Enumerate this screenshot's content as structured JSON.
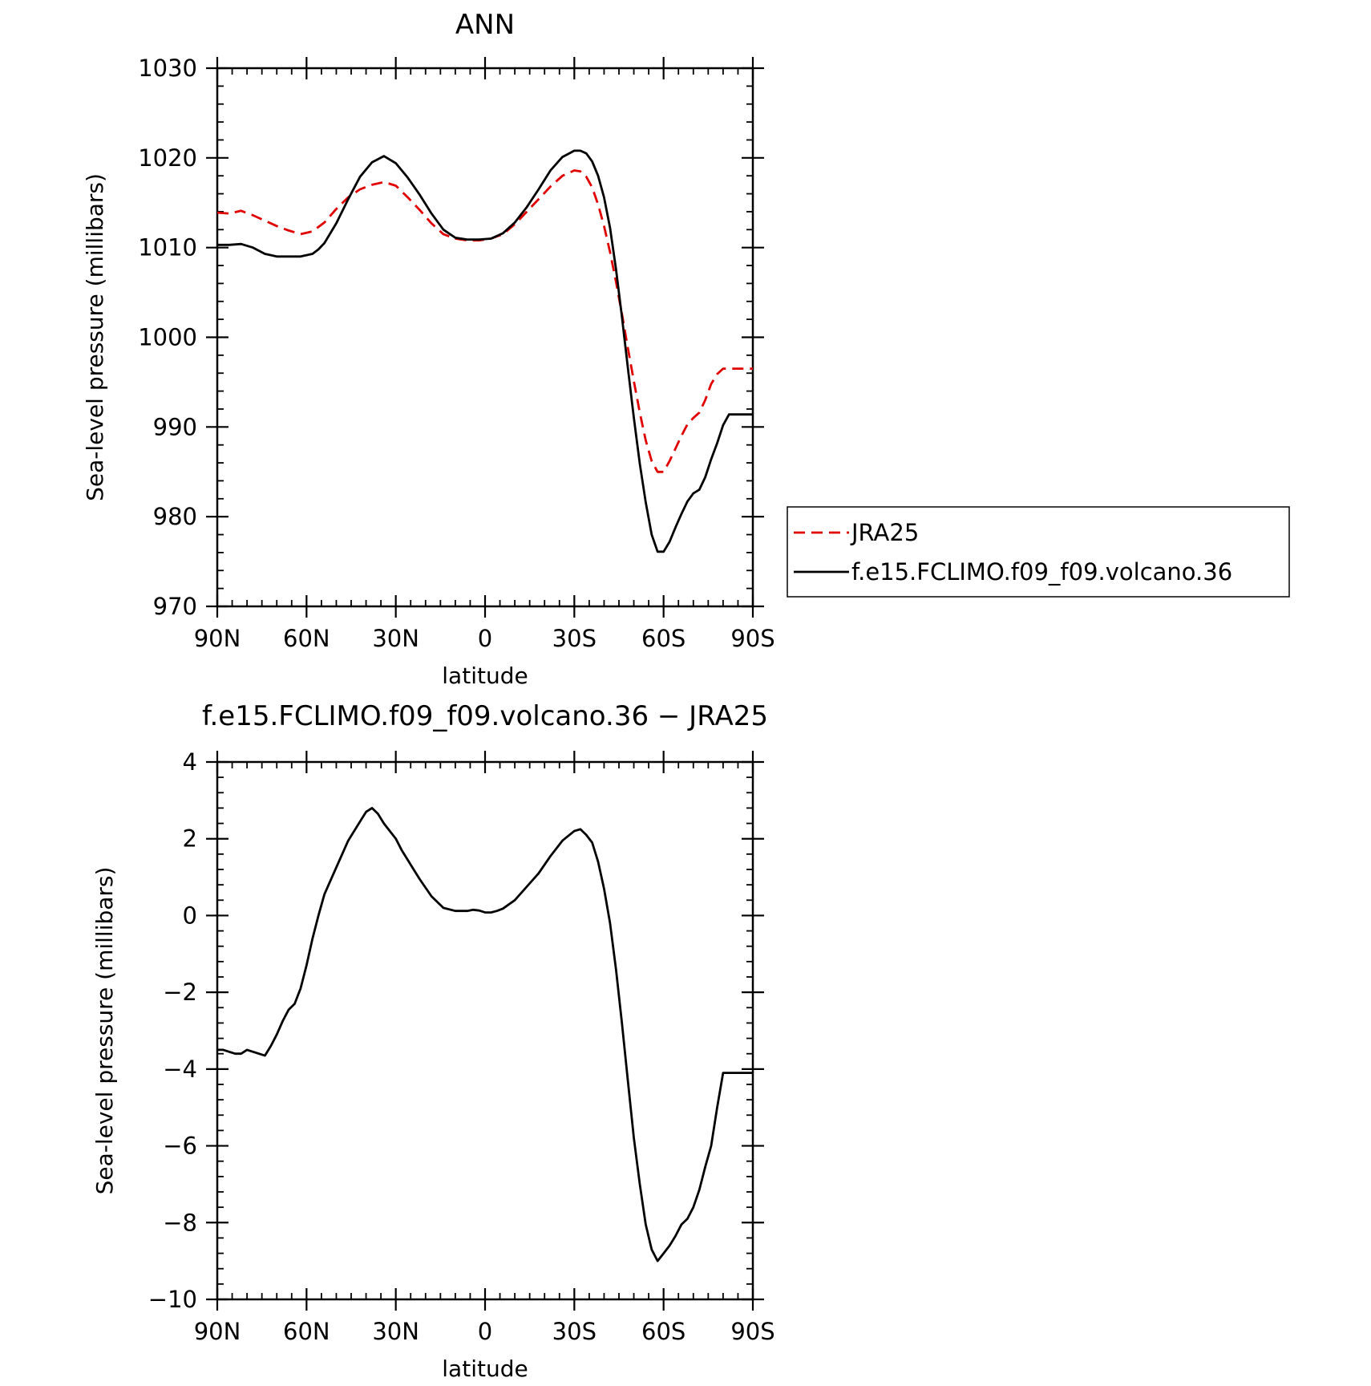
{
  "chart_data": [
    {
      "type": "line",
      "title": "ANN",
      "xlabel": "latitude",
      "ylabel": "Sea-level pressure (millibars)",
      "xlim": [
        90,
        -90
      ],
      "ylim": [
        970,
        1030
      ],
      "x_ticks": [
        {
          "value": 90,
          "label": "90N"
        },
        {
          "value": 60,
          "label": "60N"
        },
        {
          "value": 30,
          "label": "30N"
        },
        {
          "value": 0,
          "label": "0"
        },
        {
          "value": -30,
          "label": "30S"
        },
        {
          "value": -60,
          "label": "60S"
        },
        {
          "value": -90,
          "label": "90S"
        }
      ],
      "y_ticks": [
        {
          "value": 1030,
          "label": "1030"
        },
        {
          "value": 1020,
          "label": "1020"
        },
        {
          "value": 1010,
          "label": "1010"
        },
        {
          "value": 1000,
          "label": "1000"
        },
        {
          "value": 990,
          "label": "990"
        },
        {
          "value": 980,
          "label": "980"
        },
        {
          "value": 970,
          "label": "970"
        }
      ],
      "legend": {
        "position": "right"
      },
      "series": [
        {
          "name": "JRA25",
          "color": "#e00000",
          "dash": true,
          "x": [
            90,
            86,
            82,
            78,
            74,
            70,
            66,
            62,
            58,
            54,
            50,
            46,
            42,
            38,
            34,
            30,
            26,
            22,
            18,
            14,
            10,
            6,
            2,
            -2,
            -6,
            -10,
            -14,
            -18,
            -22,
            -26,
            -30,
            -32,
            -34,
            -36,
            -38,
            -40,
            -42,
            -44,
            -46,
            -48,
            -50,
            -52,
            -54,
            -56,
            -58,
            -60,
            -62,
            -64,
            -66,
            -68,
            -70,
            -72,
            -74,
            -76,
            -78,
            -80,
            -82,
            -84,
            -86,
            -88,
            -90
          ],
          "y": [
            1013.9,
            1013.8,
            1014.1,
            1013.6,
            1013.0,
            1012.4,
            1011.9,
            1011.5,
            1011.8,
            1012.8,
            1014.3,
            1015.6,
            1016.5,
            1017.0,
            1017.3,
            1016.9,
            1015.6,
            1014.2,
            1012.7,
            1011.5,
            1011.0,
            1010.8,
            1010.8,
            1011.0,
            1011.5,
            1012.6,
            1014.0,
            1015.4,
            1016.8,
            1018.0,
            1018.6,
            1018.5,
            1017.9,
            1016.7,
            1014.8,
            1012.4,
            1009.5,
            1006.2,
            1002.6,
            998.8,
            995.1,
            991.6,
            988.5,
            986.2,
            985.0,
            985.0,
            986.2,
            987.6,
            989.0,
            990.3,
            991.0,
            991.6,
            993.0,
            994.8,
            995.9,
            996.5,
            996.5,
            996.5,
            996.5,
            996.5,
            996.5
          ]
        },
        {
          "name": "f.e15.FCLIMO.f09_f09.volcano.36",
          "color": "#000000",
          "dash": false,
          "x": [
            90,
            86,
            82,
            78,
            74,
            70,
            66,
            62,
            58,
            56,
            54,
            50,
            46,
            42,
            38,
            34,
            30,
            26,
            22,
            18,
            14,
            10,
            6,
            2,
            -2,
            -6,
            -10,
            -14,
            -18,
            -22,
            -26,
            -30,
            -32,
            -34,
            -36,
            -38,
            -40,
            -42,
            -44,
            -46,
            -48,
            -50,
            -52,
            -54,
            -56,
            -58,
            -60,
            -62,
            -64,
            -66,
            -68,
            -70,
            -72,
            -74,
            -76,
            -78,
            -80,
            -82,
            -84,
            -86,
            -88,
            -90
          ],
          "y": [
            1010.3,
            1010.3,
            1010.4,
            1010.0,
            1009.3,
            1009.0,
            1009.0,
            1009.0,
            1009.3,
            1009.8,
            1010.5,
            1012.7,
            1015.4,
            1017.9,
            1019.5,
            1020.2,
            1019.4,
            1017.8,
            1015.9,
            1013.8,
            1012.0,
            1011.1,
            1010.9,
            1010.9,
            1011.0,
            1011.6,
            1012.8,
            1014.5,
            1016.5,
            1018.6,
            1020.1,
            1020.8,
            1020.8,
            1020.5,
            1019.6,
            1018.0,
            1015.6,
            1012.2,
            1007.6,
            1002.3,
            996.6,
            991.0,
            985.9,
            981.6,
            978.0,
            976.1,
            976.1,
            977.2,
            978.8,
            980.3,
            981.7,
            982.6,
            983.0,
            984.4,
            986.4,
            988.2,
            990.2,
            991.4,
            991.4,
            991.4,
            991.4,
            991.4
          ]
        }
      ]
    },
    {
      "type": "line",
      "title": "f.e15.FCLIMO.f09_f09.volcano.36 − JRA25",
      "xlabel": "latitude",
      "ylabel": "Sea-level pressure (millibars)",
      "xlim": [
        90,
        -90
      ],
      "ylim": [
        -10,
        4
      ],
      "x_ticks": [
        {
          "value": 90,
          "label": "90N"
        },
        {
          "value": 60,
          "label": "60N"
        },
        {
          "value": 30,
          "label": "30N"
        },
        {
          "value": 0,
          "label": "0"
        },
        {
          "value": -30,
          "label": "30S"
        },
        {
          "value": -60,
          "label": "60S"
        },
        {
          "value": -90,
          "label": "90S"
        }
      ],
      "y_ticks": [
        {
          "value": 4,
          "label": "4"
        },
        {
          "value": 2,
          "label": "2"
        },
        {
          "value": 0,
          "label": "0"
        },
        {
          "value": -2,
          "label": "−2"
        },
        {
          "value": -4,
          "label": "−4"
        },
        {
          "value": -6,
          "label": "−6"
        },
        {
          "value": -8,
          "label": "−8"
        },
        {
          "value": -10,
          "label": "−10"
        }
      ],
      "series": [
        {
          "color": "#000000",
          "dash": false,
          "x": [
            90,
            88,
            86,
            84,
            82,
            80,
            78,
            76,
            74,
            72,
            70,
            68,
            66,
            64,
            62,
            60,
            58,
            56,
            54,
            50,
            46,
            42,
            40,
            38,
            36,
            34,
            32,
            30,
            28,
            26,
            24,
            22,
            18,
            14,
            10,
            6,
            4,
            2,
            0,
            -2,
            -4,
            -6,
            -10,
            -14,
            -18,
            -22,
            -26,
            -30,
            -32,
            -34,
            -36,
            -38,
            -40,
            -42,
            -44,
            -46,
            -48,
            -50,
            -52,
            -54,
            -56,
            -58,
            -60,
            -62,
            -64,
            -66,
            -68,
            -70,
            -72,
            -74,
            -76,
            -78,
            -80,
            -82,
            -84,
            -86,
            -88,
            -90
          ],
          "y": [
            -3.5,
            -3.5,
            -3.55,
            -3.6,
            -3.6,
            -3.5,
            -3.55,
            -3.6,
            -3.65,
            -3.4,
            -3.1,
            -2.75,
            -2.45,
            -2.3,
            -1.9,
            -1.3,
            -0.6,
            0.0,
            0.55,
            1.25,
            1.95,
            2.45,
            2.7,
            2.8,
            2.65,
            2.4,
            2.2,
            2.0,
            1.7,
            1.45,
            1.2,
            0.95,
            0.5,
            0.2,
            0.12,
            0.12,
            0.15,
            0.13,
            0.08,
            0.08,
            0.12,
            0.18,
            0.4,
            0.75,
            1.1,
            1.55,
            1.95,
            2.2,
            2.25,
            2.1,
            1.9,
            1.4,
            0.7,
            -0.2,
            -1.4,
            -2.8,
            -4.3,
            -5.8,
            -7.0,
            -8.05,
            -8.7,
            -9.0,
            -8.8,
            -8.6,
            -8.35,
            -8.05,
            -7.9,
            -7.6,
            -7.15,
            -6.55,
            -6.0,
            -5.0,
            -4.1,
            -4.1,
            -4.1,
            -4.1,
            -4.1,
            -4.1
          ]
        }
      ]
    }
  ]
}
